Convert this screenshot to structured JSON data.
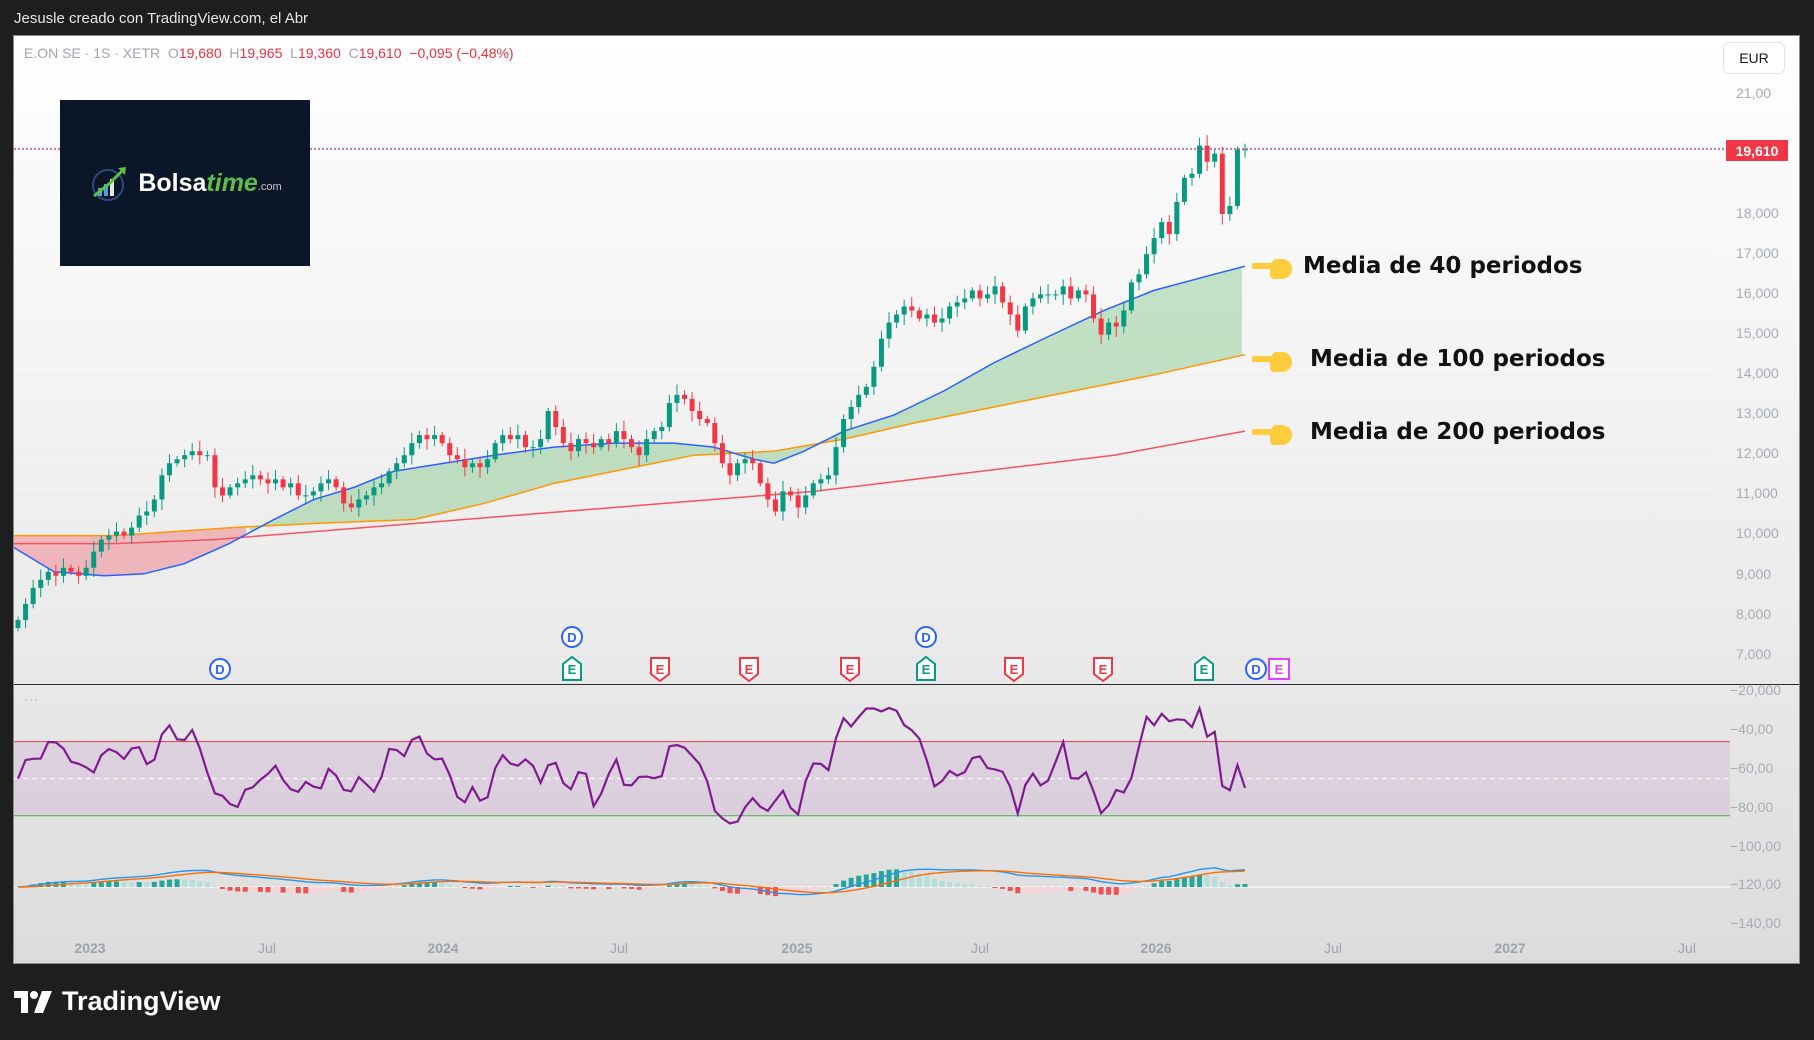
{
  "header": {
    "credit": "Jesusle creado con TradingView.com, el Abr"
  },
  "legend": {
    "symbol": "E.ON SE · 1S · XETR",
    "open_label": "O",
    "open": "19,680",
    "high_label": "H",
    "high": "19,965",
    "low_label": "L",
    "low": "19,360",
    "close_label": "C",
    "close": "19,610",
    "change": "−0,095 (−0,48%)"
  },
  "currency": "EUR",
  "last_price_tag": "19,610",
  "logo": {
    "brand_a": "Bolsa",
    "brand_b": "time",
    "suffix": ".com"
  },
  "annotations": [
    {
      "text": "Media de 40 periodos"
    },
    {
      "text": "Media de 100 periodos"
    },
    {
      "text": "Media de 200 periodos"
    }
  ],
  "price_axis": [
    "21,00",
    "18,000",
    "17,000",
    "16,000",
    "15,000",
    "14,000",
    "13,000",
    "12,000",
    "11,000",
    "10,000",
    "9,000",
    "8,000",
    "7,000"
  ],
  "rsi_axis": [
    "−20,000",
    "−40,00",
    "−60,00",
    "−80,00",
    "−100,00",
    "−120,00",
    "−140,00"
  ],
  "time_axis": [
    "2023",
    "Jul",
    "2024",
    "Jul",
    "2025",
    "Jul",
    "2026",
    "Jul",
    "2027",
    "Jul"
  ],
  "events": [
    {
      "type": "D",
      "label": "D",
      "x": 206,
      "row": 1
    },
    {
      "type": "D",
      "label": "D",
      "x": 558,
      "row": 0
    },
    {
      "type": "E-up",
      "label": "E",
      "x": 558,
      "row": 1
    },
    {
      "type": "E-down",
      "label": "E",
      "x": 646,
      "row": 1
    },
    {
      "type": "E-down",
      "label": "E",
      "x": 735,
      "row": 1
    },
    {
      "type": "E-down",
      "label": "E",
      "x": 836,
      "row": 1
    },
    {
      "type": "D",
      "label": "D",
      "x": 912,
      "row": 0
    },
    {
      "type": "E-up",
      "label": "E",
      "x": 912,
      "row": 1
    },
    {
      "type": "E-down",
      "label": "E",
      "x": 1000,
      "row": 1
    },
    {
      "type": "E-down",
      "label": "E",
      "x": 1089,
      "row": 1
    },
    {
      "type": "E-up",
      "label": "E",
      "x": 1190,
      "row": 1
    },
    {
      "type": "D",
      "label": "D",
      "x": 1242,
      "row": 1
    },
    {
      "type": "E-mag",
      "label": "E",
      "x": 1265,
      "row": 1
    }
  ],
  "colors": {
    "up": "#089981",
    "down": "#f23645",
    "ma40": "#2962ff",
    "ma100": "#ff9800",
    "ma200": "#f7525f",
    "rsi": "#7e1b8f",
    "macd": "#2196f3",
    "signal": "#ff6d00"
  },
  "footer": {
    "brand": "TradingView"
  },
  "chart_data": {
    "type": "line",
    "title": "E.ON SE · 1S · XETR (weekly candles)",
    "xlabel": "",
    "ylabel": "EUR",
    "ylim": [
      6.5,
      21.5
    ],
    "x_ticks": [
      "2023",
      "Jul",
      "2024",
      "Jul",
      "2025",
      "Jul",
      "2026",
      "Jul",
      "2027",
      "Jul"
    ],
    "closes_weekly_approx": [
      7.9,
      8.3,
      8.7,
      8.9,
      9.1,
      9.0,
      9.2,
      9.1,
      9.0,
      9.2,
      9.6,
      9.9,
      10.0,
      10.1,
      10.0,
      10.2,
      10.5,
      10.6,
      10.9,
      11.5,
      11.8,
      11.9,
      12.0,
      12.1,
      12.0,
      12.0,
      11.2,
      11.0,
      11.2,
      11.3,
      11.4,
      11.5,
      11.4,
      11.3,
      11.4,
      11.2,
      11.3,
      11.0,
      11.0,
      11.1,
      11.3,
      11.4,
      11.2,
      10.8,
      10.7,
      10.9,
      11.0,
      11.2,
      11.3,
      11.6,
      11.8,
      12.0,
      12.3,
      12.5,
      12.4,
      12.5,
      12.3,
      12.0,
      11.9,
      11.7,
      11.8,
      11.7,
      11.9,
      12.3,
      12.5,
      12.4,
      12.5,
      12.2,
      12.2,
      12.4,
      13.1,
      12.7,
      12.3,
      12.1,
      12.4,
      12.3,
      12.2,
      12.4,
      12.3,
      12.6,
      12.4,
      12.2,
      12.0,
      12.4,
      12.6,
      12.7,
      13.3,
      13.5,
      13.4,
      13.1,
      12.9,
      12.8,
      12.3,
      11.8,
      11.5,
      11.8,
      11.9,
      11.8,
      11.3,
      10.9,
      10.6,
      11.1,
      11.0,
      10.7,
      11.0,
      11.3,
      11.4,
      11.5,
      12.2,
      12.9,
      13.2,
      13.5,
      13.7,
      14.2,
      14.9,
      15.3,
      15.5,
      15.7,
      15.6,
      15.4,
      15.5,
      15.3,
      15.4,
      15.7,
      15.8,
      15.9,
      16.1,
      15.9,
      16.0,
      16.2,
      15.8,
      15.5,
      15.1,
      15.7,
      15.9,
      16.0,
      16.0,
      16.0,
      16.2,
      15.9,
      16.1,
      16.0,
      15.4,
      15.0,
      15.3,
      15.2,
      15.6,
      16.3,
      16.5,
      17.0,
      17.4,
      17.8,
      17.5,
      18.3,
      18.9,
      19.0,
      19.7,
      19.3,
      19.5,
      18.0,
      18.2,
      19.6,
      19.61
    ],
    "series": [
      {
        "name": "Media de 40 periodos",
        "color": "#2962ff",
        "approx_start": 9.6,
        "approx_end": 16.7
      },
      {
        "name": "Media de 100 periodos",
        "color": "#ff9800",
        "approx_start": 10.0,
        "approx_end": 14.5
      },
      {
        "name": "Media de 200 periodos",
        "color": "#f7525f",
        "approx_start": 9.8,
        "approx_end": 12.6
      }
    ],
    "indicators": {
      "rsi_band": {
        "upper_label": "−50 approx",
        "lower_label": "−90 approx"
      },
      "last_close": 19.61
    }
  }
}
